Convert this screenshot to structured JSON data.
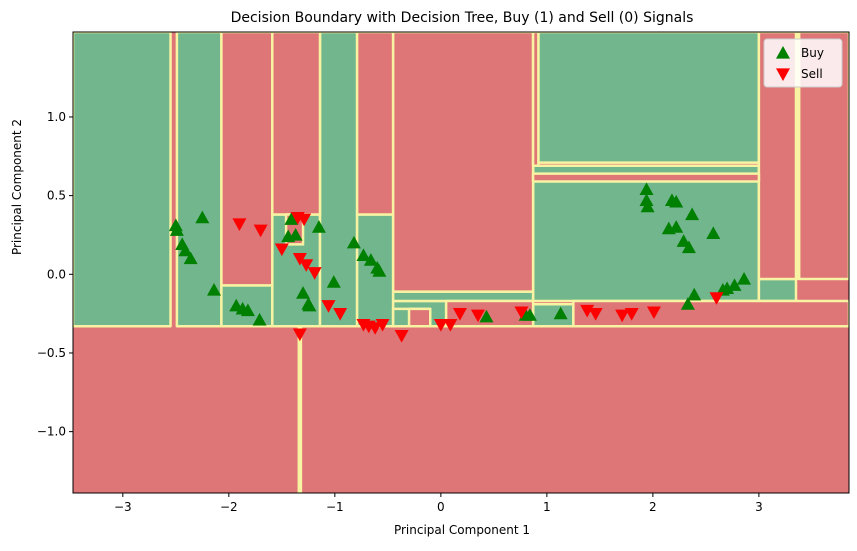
{
  "chart_data": {
    "type": "scatter",
    "title": "Decision Boundary with Decision Tree, Buy (1) and Sell (0) Signals",
    "xlabel": "Principal Component 1",
    "ylabel": "Principal Component 2",
    "xlim": [
      -3.47,
      3.85
    ],
    "ylim": [
      -1.39,
      1.54
    ],
    "xticks": [
      -3,
      -2,
      -1,
      0,
      1,
      2,
      3
    ],
    "yticks": [
      -1.0,
      -0.5,
      0.0,
      0.5,
      1.0
    ],
    "xtick_labels": [
      "−3",
      "−2",
      "−1",
      "0",
      "1",
      "2",
      "3"
    ],
    "ytick_labels": [
      "−1.0",
      "−0.5",
      "0.0",
      "0.5",
      "1.0"
    ],
    "grid": false,
    "legend_position": "upper right",
    "colors": {
      "buy_region": "#72b68e",
      "sell_region": "#de7577",
      "boundary": "#f7f3a2",
      "buy_marker": "#008000",
      "sell_marker": "#ff0000"
    },
    "series": [
      {
        "name": "Buy",
        "marker": "triangle-up",
        "points": [
          [
            -2.5,
            0.31
          ],
          [
            -2.49,
            0.28
          ],
          [
            -2.44,
            0.19
          ],
          [
            -2.41,
            0.15
          ],
          [
            -2.36,
            0.1
          ],
          [
            -2.25,
            0.36
          ],
          [
            -2.14,
            -0.1
          ],
          [
            -1.93,
            -0.2
          ],
          [
            -1.87,
            -0.22
          ],
          [
            -1.82,
            -0.23
          ],
          [
            -1.71,
            -0.29
          ],
          [
            -1.41,
            0.35
          ],
          [
            -1.44,
            0.24
          ],
          [
            -1.37,
            0.25
          ],
          [
            -1.15,
            0.3
          ],
          [
            -1.3,
            -0.12
          ],
          [
            -1.25,
            -0.19
          ],
          [
            -1.24,
            -0.2
          ],
          [
            -1.01,
            -0.05
          ],
          [
            -0.82,
            0.2
          ],
          [
            -0.73,
            0.12
          ],
          [
            -0.66,
            0.09
          ],
          [
            -0.6,
            0.04
          ],
          [
            -0.58,
            0.02
          ],
          [
            0.43,
            -0.27
          ],
          [
            0.8,
            -0.26
          ],
          [
            0.84,
            -0.26
          ],
          [
            1.13,
            -0.25
          ],
          [
            1.94,
            0.54
          ],
          [
            1.94,
            0.47
          ],
          [
            1.95,
            0.43
          ],
          [
            2.15,
            0.29
          ],
          [
            2.18,
            0.47
          ],
          [
            2.22,
            0.46
          ],
          [
            2.22,
            0.3
          ],
          [
            2.29,
            0.21
          ],
          [
            2.34,
            0.17
          ],
          [
            2.37,
            0.38
          ],
          [
            2.33,
            -0.19
          ],
          [
            2.39,
            -0.13
          ],
          [
            2.57,
            0.26
          ],
          [
            2.66,
            -0.1
          ],
          [
            2.7,
            -0.09
          ],
          [
            2.77,
            -0.07
          ],
          [
            2.86,
            -0.03
          ]
        ]
      },
      {
        "name": "Sell",
        "marker": "triangle-down",
        "points": [
          [
            -1.9,
            0.32
          ],
          [
            -1.7,
            0.28
          ],
          [
            -1.35,
            0.36
          ],
          [
            -1.29,
            0.35
          ],
          [
            -1.5,
            0.16
          ],
          [
            -1.33,
            0.1
          ],
          [
            -1.27,
            0.06
          ],
          [
            -1.19,
            0.01
          ],
          [
            -1.33,
            -0.38
          ],
          [
            -1.06,
            -0.2
          ],
          [
            -0.95,
            -0.25
          ],
          [
            -0.73,
            -0.32
          ],
          [
            -0.68,
            -0.33
          ],
          [
            -0.62,
            -0.34
          ],
          [
            -0.55,
            -0.32
          ],
          [
            -0.37,
            -0.39
          ],
          [
            0.0,
            -0.32
          ],
          [
            0.09,
            -0.32
          ],
          [
            0.18,
            -0.25
          ],
          [
            0.35,
            -0.26
          ],
          [
            0.76,
            -0.24
          ],
          [
            1.38,
            -0.23
          ],
          [
            1.46,
            -0.25
          ],
          [
            1.71,
            -0.26
          ],
          [
            1.8,
            -0.25
          ],
          [
            2.01,
            -0.24
          ],
          [
            2.6,
            -0.15
          ]
        ]
      }
    ],
    "decision_regions": {
      "buy_rectangles": [
        [
          -3.47,
          -0.33,
          -2.55,
          1.54
        ],
        [
          -2.49,
          -0.33,
          -2.07,
          1.54
        ],
        [
          -2.07,
          -0.33,
          -1.59,
          -0.07
        ],
        [
          -1.59,
          -0.33,
          -1.14,
          0.38
        ],
        [
          -1.14,
          -0.33,
          -0.79,
          1.54
        ],
        [
          -0.79,
          -0.33,
          -0.45,
          0.38
        ],
        [
          -0.45,
          -0.33,
          0.05,
          -0.17
        ],
        [
          0.87,
          -0.17,
          3.0,
          0.69
        ],
        [
          -0.45,
          -0.17,
          0.87,
          -0.11
        ],
        [
          3.0,
          -0.17,
          3.35,
          -0.03
        ],
        [
          3.35,
          -0.03,
          3.36,
          1.54
        ],
        [
          0.92,
          0.71,
          3.0,
          1.54
        ],
        [
          -1.34,
          -1.39,
          -1.32,
          -0.33
        ],
        [
          0.87,
          -0.33,
          1.25,
          -0.19
        ],
        [
          -0.45,
          -0.33,
          -0.1,
          -0.22
        ]
      ],
      "sell_rectangles": [
        [
          -2.07,
          -0.07,
          -1.59,
          1.54
        ],
        [
          -1.59,
          0.38,
          -1.14,
          1.54
        ],
        [
          -0.79,
          0.38,
          -0.45,
          1.54
        ],
        [
          -0.45,
          -0.11,
          0.87,
          1.54
        ],
        [
          0.87,
          0.69,
          0.92,
          1.54
        ],
        [
          3.0,
          -0.03,
          3.35,
          1.54
        ],
        [
          3.38,
          -0.03,
          3.85,
          1.54
        ],
        [
          -1.46,
          0.19,
          -1.3,
          0.38
        ],
        [
          0.05,
          -0.33,
          0.87,
          -0.17
        ],
        [
          -0.3,
          -0.33,
          -0.1,
          -0.22
        ],
        [
          1.25,
          -0.33,
          3.85,
          -0.17
        ],
        [
          3.0,
          0.59,
          0.87,
          0.64
        ]
      ]
    }
  }
}
